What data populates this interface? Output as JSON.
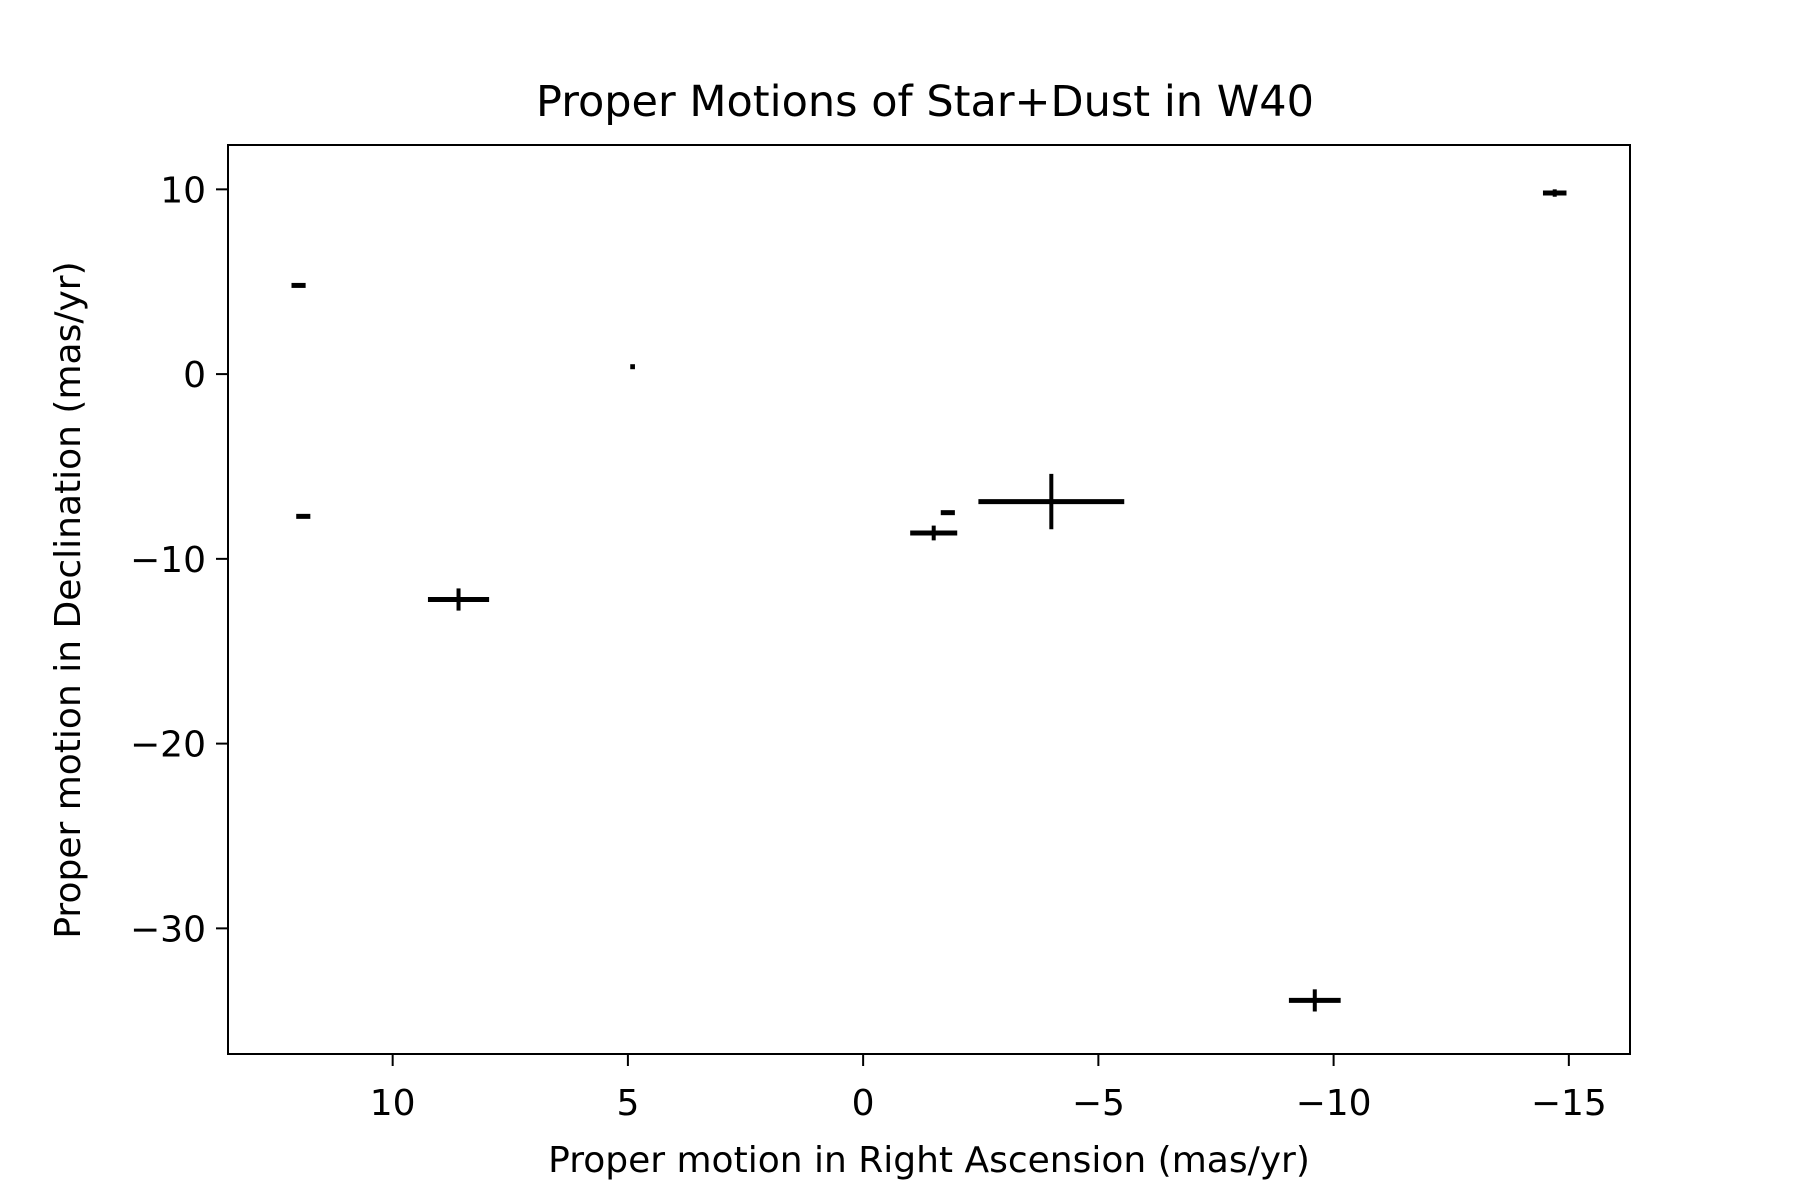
{
  "chart_data": {
    "type": "scatter",
    "title": "Proper Motions of Star+Dust in W40",
    "xlabel": "Proper motion in Right Ascension (mas/yr)",
    "ylabel": "Proper motion in Declination (mas/yr)",
    "xlim": [
      13.5,
      -16.3
    ],
    "ylim": [
      -36.8,
      12.4
    ],
    "x_inverted": true,
    "grid": false,
    "xticks": [
      {
        "value": 10,
        "label": "10"
      },
      {
        "value": 5,
        "label": "5"
      },
      {
        "value": 0,
        "label": "0"
      },
      {
        "value": -5,
        "label": "−5"
      },
      {
        "value": -10,
        "label": "−10"
      },
      {
        "value": -15,
        "label": "−15"
      }
    ],
    "yticks": [
      {
        "value": 10,
        "label": "10"
      },
      {
        "value": 0,
        "label": "0"
      },
      {
        "value": -10,
        "label": "−10"
      },
      {
        "value": -20,
        "label": "−20"
      },
      {
        "value": -30,
        "label": "−30"
      }
    ],
    "color": "#000000",
    "points": [
      {
        "x": 12.0,
        "y": 4.8,
        "xerr": 0.15,
        "yerr": 0.0
      },
      {
        "x": 11.9,
        "y": -7.7,
        "xerr": 0.15,
        "yerr": 0.0
      },
      {
        "x": 4.9,
        "y": 0.4,
        "xerr": 0.05,
        "yerr": 0.0
      },
      {
        "x": 8.6,
        "y": -12.2,
        "xerr": 0.65,
        "yerr": 0.6
      },
      {
        "x": -1.5,
        "y": -8.6,
        "xerr": 0.5,
        "yerr": 0.4
      },
      {
        "x": -1.8,
        "y": -7.5,
        "xerr": 0.15,
        "yerr": 0.0
      },
      {
        "x": -4.0,
        "y": -6.9,
        "xerr": 1.55,
        "yerr": 1.5
      },
      {
        "x": -9.6,
        "y": -33.9,
        "xerr": 0.55,
        "yerr": 0.6
      },
      {
        "x": -14.7,
        "y": 9.8,
        "xerr": 0.25,
        "yerr": 0.2
      }
    ]
  }
}
